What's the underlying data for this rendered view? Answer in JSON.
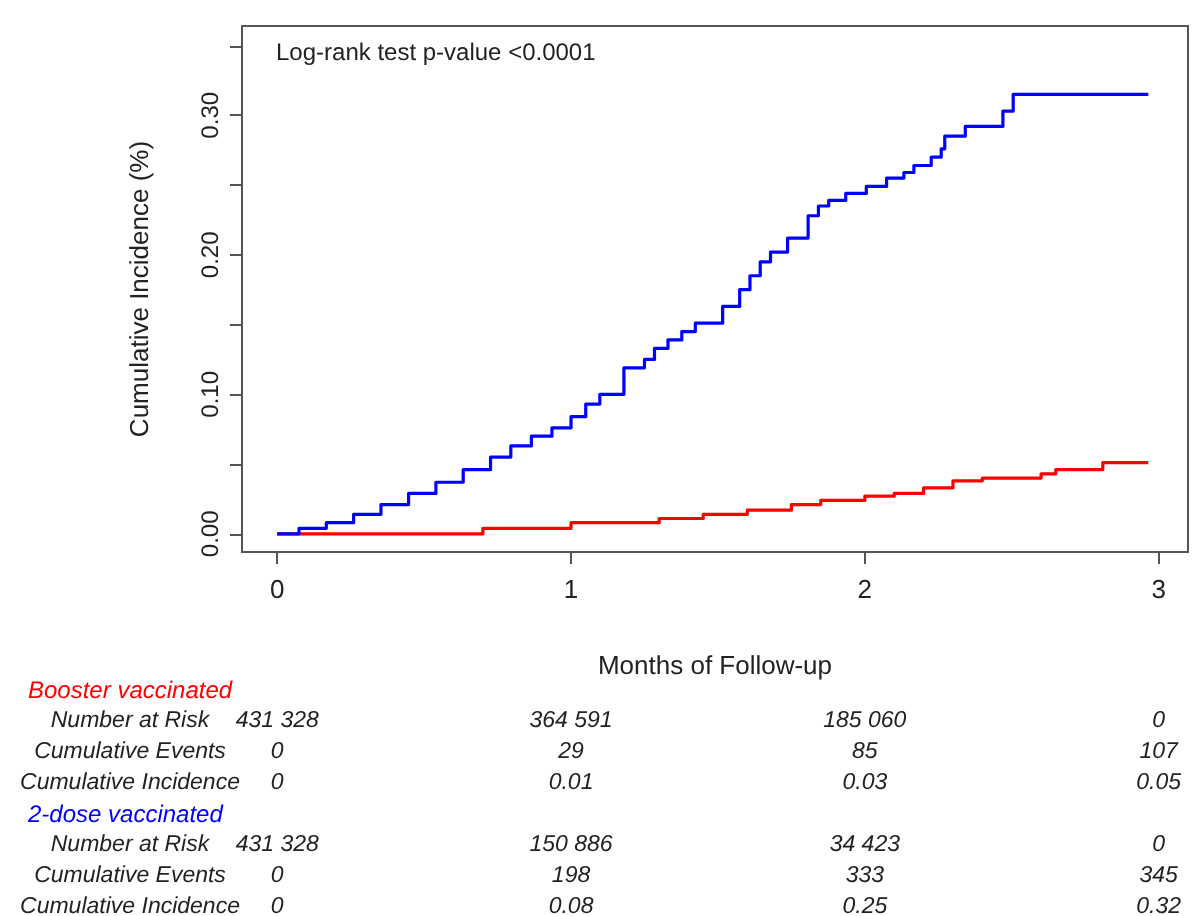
{
  "chart_data": {
    "type": "step",
    "xlabel": "Months of Follow-up",
    "ylabel": "Cumulative Incidence (%)",
    "xlim": [
      -0.12,
      3.1
    ],
    "xticks": [
      0,
      1,
      2,
      3
    ],
    "ylim": [
      -0.013,
      0.364
    ],
    "yticks": [
      {
        "value": 0,
        "label": "0.00"
      },
      {
        "value": 0.05,
        "label": null
      },
      {
        "value": 0.1,
        "label": "0.10"
      },
      {
        "value": 0.15,
        "label": null
      },
      {
        "value": 0.2,
        "label": "0.20"
      },
      {
        "value": 0.25,
        "label": null
      },
      {
        "value": 0.3,
        "label": "0.30"
      },
      {
        "value": 0.35,
        "label": null
      }
    ],
    "grid": false,
    "legend": false,
    "marker": "none",
    "line_style": "solid",
    "series": [
      {
        "name": "Booster vaccinated",
        "color": "#ff0000",
        "x": [
          0,
          0.35,
          0.7,
          1.0,
          1.3,
          1.45,
          1.6,
          1.75,
          1.85,
          2.0,
          2.1,
          2.2,
          2.3,
          2.4,
          2.6,
          2.65,
          2.8,
          2.81,
          2.965
        ],
        "values": [
          0,
          0,
          0.004,
          0.008,
          0.011,
          0.014,
          0.017,
          0.021,
          0.024,
          0.027,
          0.029,
          0.033,
          0.038,
          0.04,
          0.043,
          0.046,
          0.046,
          0.051,
          0.051
        ]
      },
      {
        "name": "2-dose vaccinated",
        "color": "#0000ff",
        "x": [
          0,
          0.074,
          0.167,
          0.26,
          0.353,
          0.447,
          0.54,
          0.633,
          0.726,
          0.795,
          0.865,
          0.935,
          1.0,
          1.05,
          1.098,
          1.18,
          1.25,
          1.284,
          1.33,
          1.377,
          1.423,
          1.516,
          1.574,
          1.609,
          1.644,
          1.679,
          1.737,
          1.807,
          1.842,
          1.877,
          1.935,
          2.005,
          2.074,
          2.133,
          2.167,
          2.226,
          2.26,
          2.272,
          2.342,
          2.47,
          2.505,
          2.965
        ],
        "values": [
          0,
          0.004,
          0.008,
          0.014,
          0.021,
          0.029,
          0.037,
          0.046,
          0.055,
          0.063,
          0.07,
          0.076,
          0.084,
          0.093,
          0.1,
          0.119,
          0.125,
          0.133,
          0.139,
          0.145,
          0.151,
          0.163,
          0.175,
          0.185,
          0.195,
          0.202,
          0.212,
          0.228,
          0.235,
          0.239,
          0.244,
          0.249,
          0.255,
          0.259,
          0.264,
          0.27,
          0.276,
          0.285,
          0.292,
          0.303,
          0.315,
          0.315
        ]
      }
    ],
    "annotations": [
      "Log-rank test p-value <0.0001",
      "Number at Risk",
      "431 328",
      "364 591",
      "185 060",
      "0",
      "Cumulative Events",
      "0",
      "29",
      "85",
      "107",
      "Cumulative Incidence",
      "0",
      "0.01",
      "0.03",
      "0.05",
      "Number at Risk",
      "431 328",
      "150 886",
      "34 423",
      "0",
      "Cumulative Events",
      "0",
      "198",
      "333",
      "345",
      "Cumulative Incidence",
      "0",
      "0.08",
      "0.25",
      "0.32"
    ]
  }
}
